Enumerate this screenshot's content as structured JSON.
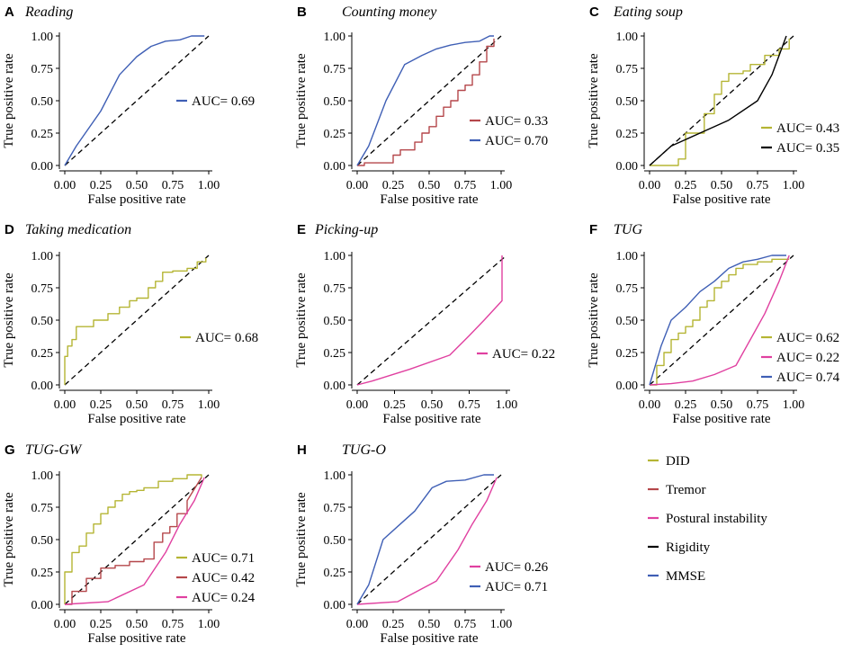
{
  "figure": {
    "legend": [
      {
        "label": "DID",
        "color": "#b5b534"
      },
      {
        "label": "Tremor",
        "color": "#b5474b"
      },
      {
        "label": "Postural instability",
        "color": "#e040a0"
      },
      {
        "label": "Rigidity",
        "color": "#000000"
      },
      {
        "label": "MMSE",
        "color": "#3f5fb5"
      }
    ]
  },
  "chart_data": [
    {
      "type": "line",
      "panel": "A",
      "title": "Reading",
      "xlabel": "False positive rate",
      "ylabel": "True positive rate",
      "xlim": [
        0,
        1
      ],
      "ylim": [
        0,
        1
      ],
      "ticks": [
        "0.00",
        "0.25",
        "0.50",
        "0.75",
        "1.00"
      ],
      "series": [
        {
          "name": "MMSE",
          "auc_label": "AUC= 0.69",
          "color": "#3f5fb5",
          "x": [
            0,
            0.08,
            0.25,
            0.38,
            0.5,
            0.6,
            0.7,
            0.8,
            0.88,
            0.97
          ],
          "y": [
            0,
            0.15,
            0.42,
            0.7,
            0.84,
            0.92,
            0.96,
            0.97,
            1.0,
            1.0
          ]
        }
      ]
    },
    {
      "type": "line",
      "panel": "B",
      "title": "Counting money",
      "xlabel": "False positive rate",
      "ylabel": "True positive rate",
      "xlim": [
        0,
        1
      ],
      "ylim": [
        0,
        1
      ],
      "ticks": [
        "0.00",
        "0.25",
        "0.50",
        "0.75",
        "1.00"
      ],
      "series": [
        {
          "name": "Tremor",
          "auc_label": "AUC= 0.33",
          "color": "#b5474b",
          "x": [
            0,
            0.05,
            0.05,
            0.25,
            0.25,
            0.3,
            0.3,
            0.4,
            0.4,
            0.45,
            0.45,
            0.5,
            0.5,
            0.55,
            0.55,
            0.6,
            0.6,
            0.65,
            0.65,
            0.7,
            0.7,
            0.75,
            0.75,
            0.8,
            0.8,
            0.85,
            0.85,
            0.9,
            0.9,
            0.95,
            0.95
          ],
          "y": [
            0,
            0,
            0.02,
            0.02,
            0.08,
            0.08,
            0.12,
            0.12,
            0.18,
            0.18,
            0.25,
            0.25,
            0.3,
            0.3,
            0.38,
            0.38,
            0.45,
            0.45,
            0.5,
            0.5,
            0.58,
            0.58,
            0.62,
            0.62,
            0.7,
            0.7,
            0.8,
            0.8,
            0.92,
            0.92,
            0.98
          ]
        },
        {
          "name": "MMSE",
          "auc_label": "AUC= 0.70",
          "color": "#3f5fb5",
          "x": [
            0,
            0.08,
            0.2,
            0.33,
            0.45,
            0.55,
            0.65,
            0.75,
            0.85,
            0.92,
            0.95
          ],
          "y": [
            0,
            0.15,
            0.5,
            0.78,
            0.85,
            0.9,
            0.93,
            0.95,
            0.96,
            1.0,
            1.0
          ]
        }
      ]
    },
    {
      "type": "line",
      "panel": "C",
      "title": "Eating soup",
      "xlabel": "False positive rate",
      "ylabel": "True positive rate",
      "xlim": [
        0,
        1
      ],
      "ylim": [
        0,
        1
      ],
      "ticks": [
        "0.00",
        "0.25",
        "0.50",
        "0.75",
        "1.00"
      ],
      "series": [
        {
          "name": "DID",
          "auc_label": "AUC= 0.43",
          "color": "#b5b534",
          "x": [
            0,
            0.2,
            0.2,
            0.25,
            0.25,
            0.38,
            0.38,
            0.45,
            0.45,
            0.5,
            0.5,
            0.55,
            0.55,
            0.65,
            0.65,
            0.7,
            0.7,
            0.8,
            0.8,
            0.9,
            0.9,
            0.97,
            0.97
          ],
          "y": [
            0,
            0,
            0.05,
            0.05,
            0.25,
            0.25,
            0.4,
            0.4,
            0.55,
            0.55,
            0.65,
            0.65,
            0.71,
            0.71,
            0.73,
            0.73,
            0.78,
            0.78,
            0.85,
            0.85,
            0.9,
            0.9,
            0.98
          ]
        },
        {
          "name": "Rigidity",
          "auc_label": "AUC= 0.35",
          "color": "#000000",
          "x": [
            0,
            0.15,
            0.35,
            0.55,
            0.75,
            0.85,
            0.95
          ],
          "y": [
            0,
            0.15,
            0.25,
            0.35,
            0.5,
            0.7,
            1.0
          ]
        }
      ]
    },
    {
      "type": "line",
      "panel": "D",
      "title": "Taking medication",
      "xlabel": "False positive rate",
      "ylabel": "True positive rate",
      "xlim": [
        0,
        1
      ],
      "ylim": [
        0,
        1
      ],
      "ticks": [
        "0.00",
        "0.25",
        "0.50",
        "0.75",
        "1.00"
      ],
      "series": [
        {
          "name": "DID",
          "auc_label": "AUC= 0.68",
          "color": "#b5b534",
          "x": [
            0,
            0,
            0.02,
            0.02,
            0.05,
            0.05,
            0.08,
            0.08,
            0.2,
            0.2,
            0.3,
            0.3,
            0.38,
            0.38,
            0.45,
            0.45,
            0.5,
            0.5,
            0.58,
            0.58,
            0.63,
            0.63,
            0.68,
            0.68,
            0.75,
            0.75,
            0.85,
            0.85,
            0.92,
            0.92,
            0.98,
            0.98
          ],
          "y": [
            0,
            0.22,
            0.22,
            0.3,
            0.3,
            0.35,
            0.35,
            0.45,
            0.45,
            0.5,
            0.5,
            0.55,
            0.55,
            0.6,
            0.6,
            0.65,
            0.65,
            0.67,
            0.67,
            0.75,
            0.75,
            0.8,
            0.8,
            0.87,
            0.87,
            0.88,
            0.88,
            0.9,
            0.9,
            0.95,
            0.95,
            0.98
          ]
        }
      ]
    },
    {
      "type": "line",
      "panel": "E",
      "title": "Picking-up",
      "xlabel": "False positive rate",
      "ylabel": "True positive rate",
      "xlim": [
        0,
        1
      ],
      "ylim": [
        0,
        1
      ],
      "ticks": [
        "0.00",
        "0.25",
        "0.50",
        "0.75",
        "1.00"
      ],
      "series": [
        {
          "name": "Postural instability",
          "auc_label": "AUC= 0.22",
          "color": "#e040a0",
          "x": [
            0,
            0.1,
            0.35,
            0.62,
            0.75,
            0.85,
            0.97,
            0.97
          ],
          "y": [
            0,
            0.03,
            0.12,
            0.23,
            0.38,
            0.5,
            0.65,
            1.0
          ]
        }
      ]
    },
    {
      "type": "line",
      "panel": "F",
      "title": "TUG",
      "xlabel": "False positive rate",
      "ylabel": "True positive rate",
      "xlim": [
        0,
        1
      ],
      "ylim": [
        0,
        1
      ],
      "ticks": [
        "0.00",
        "0.25",
        "0.50",
        "0.75",
        "1.00"
      ],
      "series": [
        {
          "name": "DID",
          "auc_label": "AUC= 0.62",
          "color": "#b5b534",
          "x": [
            0,
            0.05,
            0.05,
            0.1,
            0.1,
            0.15,
            0.15,
            0.2,
            0.2,
            0.25,
            0.25,
            0.3,
            0.3,
            0.35,
            0.35,
            0.4,
            0.4,
            0.45,
            0.45,
            0.5,
            0.5,
            0.55,
            0.55,
            0.6,
            0.6,
            0.65,
            0.65,
            0.75,
            0.75,
            0.85,
            0.85,
            0.97
          ],
          "y": [
            0,
            0,
            0.15,
            0.15,
            0.25,
            0.25,
            0.35,
            0.35,
            0.4,
            0.4,
            0.45,
            0.45,
            0.5,
            0.5,
            0.6,
            0.6,
            0.65,
            0.65,
            0.75,
            0.75,
            0.8,
            0.8,
            0.85,
            0.85,
            0.9,
            0.9,
            0.93,
            0.93,
            0.95,
            0.95,
            0.97,
            0.97
          ]
        },
        {
          "name": "Postural instability",
          "auc_label": "AUC= 0.22",
          "color": "#e040a0",
          "x": [
            0,
            0.15,
            0.3,
            0.45,
            0.6,
            0.7,
            0.8,
            0.9,
            0.97
          ],
          "y": [
            0,
            0.01,
            0.03,
            0.08,
            0.15,
            0.35,
            0.55,
            0.8,
            1.0
          ]
        },
        {
          "name": "MMSE",
          "auc_label": "AUC= 0.74",
          "color": "#3f5fb5",
          "x": [
            0,
            0.08,
            0.15,
            0.25,
            0.35,
            0.45,
            0.55,
            0.65,
            0.75,
            0.85,
            0.95
          ],
          "y": [
            0,
            0.3,
            0.5,
            0.6,
            0.72,
            0.8,
            0.9,
            0.95,
            0.97,
            1.0,
            1.0
          ]
        }
      ]
    },
    {
      "type": "line",
      "panel": "G",
      "title": "TUG-GW",
      "xlabel": "False positive rate",
      "ylabel": "True positive rate",
      "xlim": [
        0,
        1
      ],
      "ylim": [
        0,
        1
      ],
      "ticks": [
        "0.00",
        "0.25",
        "0.50",
        "0.75",
        "1.00"
      ],
      "series": [
        {
          "name": "DID",
          "auc_label": "AUC= 0.71",
          "color": "#b5b534",
          "x": [
            0,
            0,
            0.05,
            0.05,
            0.1,
            0.1,
            0.15,
            0.15,
            0.2,
            0.2,
            0.25,
            0.25,
            0.3,
            0.3,
            0.35,
            0.35,
            0.4,
            0.4,
            0.45,
            0.45,
            0.5,
            0.5,
            0.55,
            0.55,
            0.65,
            0.65,
            0.75,
            0.75,
            0.85,
            0.85,
            0.95,
            0.95
          ],
          "y": [
            0,
            0.25,
            0.25,
            0.4,
            0.4,
            0.45,
            0.45,
            0.55,
            0.55,
            0.62,
            0.62,
            0.7,
            0.7,
            0.75,
            0.75,
            0.8,
            0.8,
            0.85,
            0.85,
            0.87,
            0.87,
            0.88,
            0.88,
            0.9,
            0.9,
            0.95,
            0.95,
            0.97,
            0.97,
            1.0,
            1.0,
            0.98
          ]
        },
        {
          "name": "Tremor",
          "auc_label": "AUC= 0.42",
          "color": "#b5474b",
          "x": [
            0,
            0.05,
            0.05,
            0.15,
            0.15,
            0.25,
            0.25,
            0.35,
            0.35,
            0.45,
            0.45,
            0.55,
            0.55,
            0.62,
            0.62,
            0.68,
            0.68,
            0.73,
            0.73,
            0.78,
            0.78,
            0.85,
            0.85,
            0.95
          ],
          "y": [
            0,
            0,
            0.1,
            0.1,
            0.2,
            0.2,
            0.28,
            0.28,
            0.3,
            0.3,
            0.33,
            0.33,
            0.35,
            0.35,
            0.48,
            0.48,
            0.55,
            0.55,
            0.6,
            0.6,
            0.7,
            0.7,
            0.8,
            0.98
          ]
        },
        {
          "name": "Postural instability",
          "auc_label": "AUC= 0.24",
          "color": "#e040a0",
          "x": [
            0,
            0.3,
            0.55,
            0.7,
            0.8,
            0.9,
            0.97
          ],
          "y": [
            0,
            0.02,
            0.15,
            0.4,
            0.62,
            0.8,
            0.98
          ]
        }
      ]
    },
    {
      "type": "line",
      "panel": "H",
      "title": "TUG-O",
      "xlabel": "False positive rate",
      "ylabel": "True positive rate",
      "xlim": [
        0,
        1
      ],
      "ylim": [
        0,
        1
      ],
      "ticks": [
        "0.00",
        "0.25",
        "0.50",
        "0.75",
        "1.00"
      ],
      "series": [
        {
          "name": "Postural instability",
          "auc_label": "AUC= 0.26",
          "color": "#e040a0",
          "x": [
            0,
            0.28,
            0.55,
            0.7,
            0.8,
            0.9,
            0.97
          ],
          "y": [
            0,
            0.02,
            0.18,
            0.42,
            0.62,
            0.8,
            0.98
          ]
        },
        {
          "name": "MMSE",
          "auc_label": "AUC= 0.71",
          "color": "#3f5fb5",
          "x": [
            0,
            0.08,
            0.18,
            0.3,
            0.4,
            0.52,
            0.62,
            0.75,
            0.88,
            0.95
          ],
          "y": [
            0,
            0.15,
            0.5,
            0.62,
            0.72,
            0.9,
            0.95,
            0.96,
            1.0,
            1.0
          ]
        }
      ]
    }
  ]
}
